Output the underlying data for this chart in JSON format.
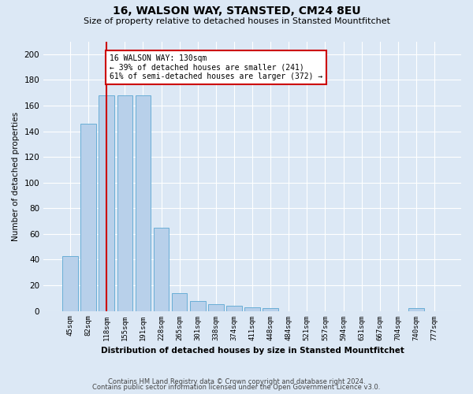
{
  "title": "16, WALSON WAY, STANSTED, CM24 8EU",
  "subtitle": "Size of property relative to detached houses in Stansted Mountfitchet",
  "xlabel": "Distribution of detached houses by size in Stansted Mountfitchet",
  "ylabel": "Number of detached properties",
  "bar_values": [
    43,
    146,
    168,
    168,
    168,
    65,
    14,
    8,
    5,
    4,
    3,
    2,
    0,
    0,
    0,
    0,
    0,
    0,
    0,
    2,
    0
  ],
  "categories": [
    "45sqm",
    "82sqm",
    "118sqm",
    "155sqm",
    "191sqm",
    "228sqm",
    "265sqm",
    "301sqm",
    "338sqm",
    "374sqm",
    "411sqm",
    "448sqm",
    "484sqm",
    "521sqm",
    "557sqm",
    "594sqm",
    "631sqm",
    "667sqm",
    "704sqm",
    "740sqm",
    "777sqm"
  ],
  "bar_color": "#b8d0ea",
  "bar_edge_color": "#6aaed6",
  "fig_facecolor": "#dce8f5",
  "ax_facecolor": "#dce8f5",
  "grid_color": "#ffffff",
  "vline_x_index": 2,
  "vline_color": "#cc0000",
  "annotation_text": "16 WALSON WAY: 130sqm\n← 39% of detached houses are smaller (241)\n61% of semi-detached houses are larger (372) →",
  "annotation_box_color": "#ffffff",
  "annotation_box_edge": "#cc0000",
  "footnote1": "Contains HM Land Registry data © Crown copyright and database right 2024.",
  "footnote2": "Contains public sector information licensed under the Open Government Licence v3.0.",
  "ylim": [
    0,
    210
  ],
  "yticks": [
    0,
    20,
    40,
    60,
    80,
    100,
    120,
    140,
    160,
    180,
    200
  ]
}
